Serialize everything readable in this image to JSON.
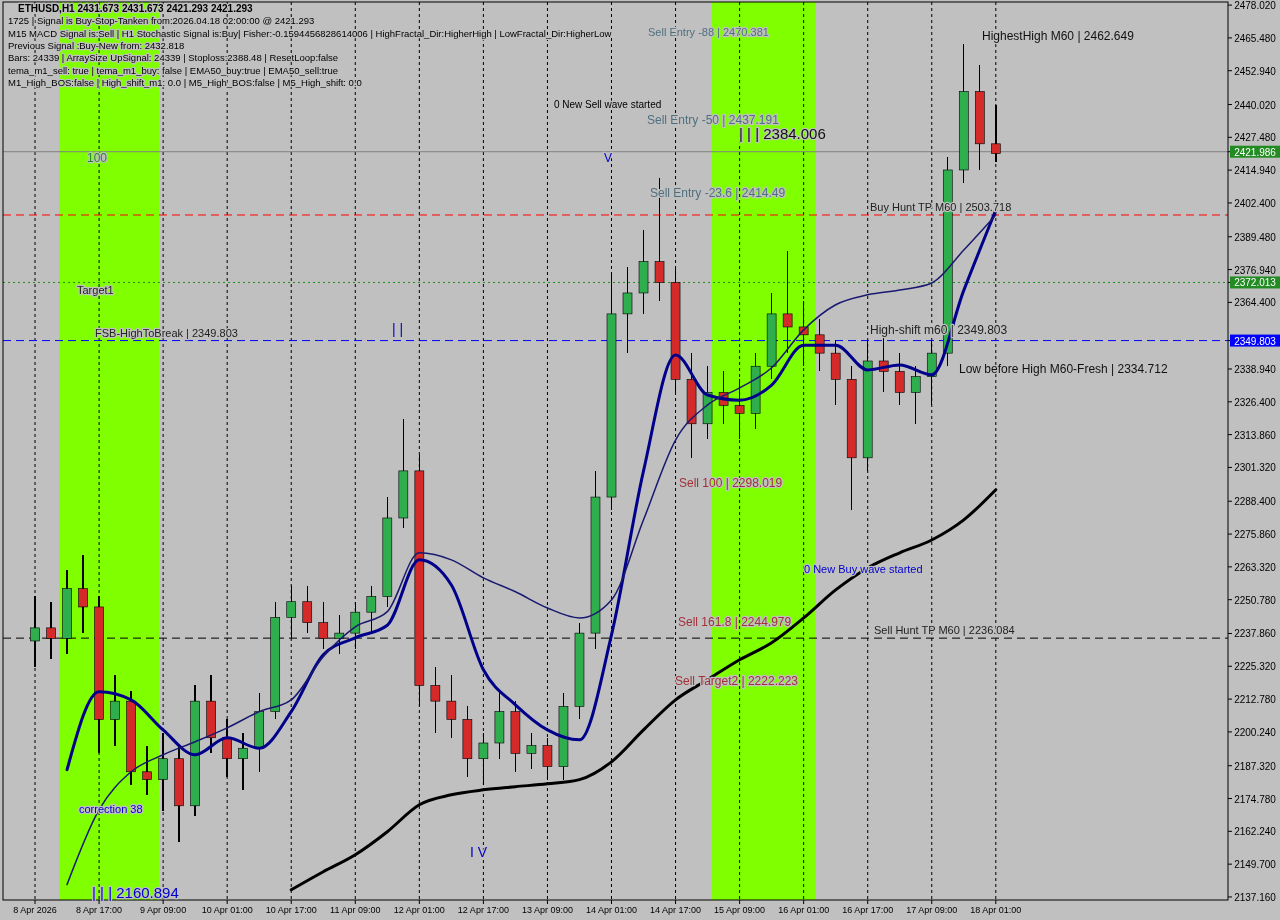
{
  "chart_data": {
    "type": "candlestick",
    "title": "ETHUSD,H1  2431.673 2431.673 2421.293 2421.293",
    "x": [
      "2026-04-08T01:00",
      "2026-04-08T05:00",
      "2026-04-08T09:00",
      "2026-04-08T13:00",
      "2026-04-08T17:00",
      "2026-04-08T21:00",
      "2026-04-09T01:00",
      "2026-04-09T05:00",
      "2026-04-09T09:00",
      "2026-04-09T13:00",
      "2026-04-09T17:00",
      "2026-04-09T21:00",
      "2026-04-10T01:00",
      "2026-04-10T05:00",
      "2026-04-10T09:00",
      "2026-04-10T13:00",
      "2026-04-10T17:00",
      "2026-04-10T21:00",
      "2026-04-11T01:00",
      "2026-04-11T05:00",
      "2026-04-11T09:00",
      "2026-04-11T13:00",
      "2026-04-11T17:00",
      "2026-04-11T21:00",
      "2026-04-12T01:00",
      "2026-04-12T05:00",
      "2026-04-12T09:00",
      "2026-04-12T13:00",
      "2026-04-12T17:00",
      "2026-04-12T21:00",
      "2026-04-13T01:00",
      "2026-04-13T05:00",
      "2026-04-13T09:00",
      "2026-04-13T13:00",
      "2026-04-13T17:00",
      "2026-04-13T21:00",
      "2026-04-14T01:00",
      "2026-04-14T05:00",
      "2026-04-14T09:00",
      "2026-04-14T13:00",
      "2026-04-14T17:00",
      "2026-04-14T21:00",
      "2026-04-15T01:00",
      "2026-04-15T05:00",
      "2026-04-15T09:00",
      "2026-04-15T13:00",
      "2026-04-15T17:00",
      "2026-04-15T21:00",
      "2026-04-16T01:00",
      "2026-04-16T05:00",
      "2026-04-16T09:00",
      "2026-04-16T13:00",
      "2026-04-16T17:00",
      "2026-04-16T21:00",
      "2026-04-17T01:00",
      "2026-04-17T05:00",
      "2026-04-17T09:00",
      "2026-04-17T13:00",
      "2026-04-17T17:00",
      "2026-04-17T21:00",
      "2026-04-18T01:00"
    ],
    "ohlc": [
      [
        2235,
        2252,
        2225,
        2240
      ],
      [
        2240,
        2250,
        2228,
        2236
      ],
      [
        2236,
        2262,
        2230,
        2255
      ],
      [
        2255,
        2268,
        2238,
        2248
      ],
      [
        2248,
        2252,
        2192,
        2205
      ],
      [
        2205,
        2222,
        2195,
        2212
      ],
      [
        2212,
        2216,
        2180,
        2185
      ],
      [
        2185,
        2195,
        2176,
        2182
      ],
      [
        2182,
        2200,
        2170,
        2190
      ],
      [
        2190,
        2195,
        2158,
        2172
      ],
      [
        2172,
        2218,
        2168,
        2212
      ],
      [
        2212,
        2222,
        2192,
        2198
      ],
      [
        2198,
        2205,
        2183,
        2190
      ],
      [
        2190,
        2200,
        2178,
        2194
      ],
      [
        2194,
        2215,
        2185,
        2208
      ],
      [
        2208,
        2250,
        2205,
        2244
      ],
      [
        2244,
        2256,
        2236,
        2250
      ],
      [
        2250,
        2256,
        2238,
        2242
      ],
      [
        2242,
        2250,
        2232,
        2236
      ],
      [
        2236,
        2245,
        2230,
        2238
      ],
      [
        2238,
        2250,
        2232,
        2246
      ],
      [
        2246,
        2256,
        2238,
        2252
      ],
      [
        2252,
        2290,
        2248,
        2282
      ],
      [
        2282,
        2320,
        2278,
        2300
      ],
      [
        2300,
        2306,
        2210,
        2218
      ],
      [
        2218,
        2225,
        2200,
        2212
      ],
      [
        2212,
        2222,
        2198,
        2205
      ],
      [
        2205,
        2210,
        2183,
        2190
      ],
      [
        2190,
        2200,
        2180,
        2196
      ],
      [
        2196,
        2215,
        2190,
        2208
      ],
      [
        2208,
        2212,
        2185,
        2192
      ],
      [
        2192,
        2200,
        2186,
        2195
      ],
      [
        2195,
        2198,
        2182,
        2187
      ],
      [
        2187,
        2215,
        2182,
        2210
      ],
      [
        2210,
        2242,
        2205,
        2238
      ],
      [
        2238,
        2300,
        2232,
        2290
      ],
      [
        2290,
        2375,
        2285,
        2360
      ],
      [
        2360,
        2378,
        2345,
        2368
      ],
      [
        2368,
        2392,
        2360,
        2380
      ],
      [
        2380,
        2412,
        2365,
        2372
      ],
      [
        2372,
        2378,
        2330,
        2335
      ],
      [
        2335,
        2345,
        2305,
        2318
      ],
      [
        2318,
        2340,
        2312,
        2330
      ],
      [
        2330,
        2338,
        2318,
        2325
      ],
      [
        2325,
        2335,
        2312,
        2322
      ],
      [
        2322,
        2345,
        2316,
        2340
      ],
      [
        2340,
        2368,
        2335,
        2360
      ],
      [
        2360,
        2384,
        2345,
        2355
      ],
      [
        2355,
        2365,
        2340,
        2352
      ],
      [
        2352,
        2358,
        2338,
        2345
      ],
      [
        2345,
        2350,
        2325,
        2335
      ],
      [
        2335,
        2340,
        2285,
        2305
      ],
      [
        2305,
        2350,
        2300,
        2342
      ],
      [
        2342,
        2355,
        2330,
        2338
      ],
      [
        2338,
        2345,
        2325,
        2330
      ],
      [
        2330,
        2340,
        2318,
        2336
      ],
      [
        2336,
        2350,
        2325,
        2345
      ],
      [
        2345,
        2420,
        2340,
        2415
      ],
      [
        2415,
        2463,
        2410,
        2445
      ],
      [
        2445,
        2455,
        2415,
        2425
      ],
      [
        2425,
        2440,
        2418,
        2421.293
      ]
    ],
    "series": [
      {
        "type": "line",
        "color": "#00008b",
        "x": [
          "2026-04-08T09:00",
          "2026-04-08T17:00",
          "2026-04-09T01:00",
          "2026-04-09T09:00",
          "2026-04-09T17:00",
          "2026-04-10T01:00",
          "2026-04-10T09:00",
          "2026-04-10T17:00",
          "2026-04-11T01:00",
          "2026-04-11T09:00",
          "2026-04-11T17:00",
          "2026-04-12T01:00",
          "2026-04-12T09:00",
          "2026-04-12T17:00",
          "2026-04-13T01:00",
          "2026-04-13T09:00",
          "2026-04-13T17:00",
          "2026-04-14T01:00",
          "2026-04-14T09:00",
          "2026-04-14T17:00",
          "2026-04-15T01:00",
          "2026-04-15T09:00",
          "2026-04-15T17:00",
          "2026-04-16T01:00",
          "2026-04-16T09:00",
          "2026-04-16T17:00",
          "2026-04-17T01:00",
          "2026-04-17T09:00",
          "2026-04-17T17:00",
          "2026-04-18T01:00"
        ],
        "values": [
          2185.8,
          2215.6,
          2212.5,
          2201,
          2191.5,
          2198,
          2194,
          2208,
          2229.7,
          2236.2,
          2241,
          2266,
          2256.4,
          2224,
          2210.6,
          2201,
          2197.2,
          2237.3,
          2300,
          2344.3,
          2329,
          2327,
          2332.8,
          2348,
          2348,
          2338.6,
          2340.5,
          2336.7,
          2369,
          2399.7
        ]
      },
      {
        "type": "line",
        "color": "#191970",
        "x": [
          "2026-04-08T09:00",
          "2026-04-08T17:00",
          "2026-04-09T01:00",
          "2026-04-09T09:00",
          "2026-04-09T17:00",
          "2026-04-10T01:00",
          "2026-04-10T09:00",
          "2026-04-10T17:00",
          "2026-04-11T01:00",
          "2026-04-11T09:00",
          "2026-04-11T17:00",
          "2026-04-12T01:00",
          "2026-04-12T09:00",
          "2026-04-12T17:00",
          "2026-04-13T01:00",
          "2026-04-13T09:00",
          "2026-04-13T17:00",
          "2026-04-14T01:00",
          "2026-04-14T09:00",
          "2026-04-14T17:00",
          "2026-04-15T01:00",
          "2026-04-15T09:00",
          "2026-04-15T17:00",
          "2026-04-16T01:00",
          "2026-04-16T09:00",
          "2026-04-16T17:00",
          "2026-04-17T01:00",
          "2026-04-17T09:00",
          "2026-04-17T17:00",
          "2026-04-18T01:00"
        ],
        "values": [
          2141.9,
          2170.5,
          2185,
          2191.5,
          2196.5,
          2201.8,
          2208,
          2212.5,
          2229,
          2240.4,
          2246.2,
          2268.7,
          2266,
          2259.1,
          2253.8,
          2247.6,
          2243.8,
          2250.7,
          2281.3,
          2311.8,
          2325.2,
          2331.7,
          2339.4,
          2353.9,
          2363.5,
          2367.3,
          2369.1,
          2371.8,
          2384.4,
          2397.8
        ]
      },
      {
        "type": "line",
        "color": "#000000",
        "x": [
          "2026-04-10T17:00",
          "2026-04-11T01:00",
          "2026-04-11T09:00",
          "2026-04-11T17:00",
          "2026-04-12T01:00",
          "2026-04-12T09:00",
          "2026-04-12T17:00",
          "2026-04-13T01:00",
          "2026-04-13T09:00",
          "2026-04-13T17:00",
          "2026-04-14T01:00",
          "2026-04-14T09:00",
          "2026-04-14T17:00",
          "2026-04-15T01:00",
          "2026-04-15T09:00",
          "2026-04-15T17:00",
          "2026-04-16T01:00",
          "2026-04-16T09:00",
          "2026-04-16T17:00",
          "2026-04-17T01:00",
          "2026-04-17T09:00",
          "2026-04-17T17:00",
          "2026-04-18T01:00"
        ],
        "values": [
          2139.9,
          2146.8,
          2153.3,
          2162.1,
          2172.4,
          2176.2,
          2178.1,
          2179.3,
          2180.4,
          2182,
          2188.8,
          2201,
          2212.5,
          2220.2,
          2227.8,
          2234.3,
          2243.8,
          2254.5,
          2262.9,
          2268.7,
          2273.6,
          2281.3,
          2292.8
        ]
      }
    ],
    "xlim": [
      "2026-04-07T17:00",
      "2026-04-20T11:00"
    ],
    "xticks": [
      {
        "value": "2026-04-08T01:00",
        "label": "8 Apr 2026"
      },
      {
        "value": "2026-04-08T17:00",
        "label": "8 Apr 17:00"
      },
      {
        "value": "2026-04-09T09:00",
        "label": "9 Apr 09:00"
      },
      {
        "value": "2026-04-10T01:00",
        "label": "10 Apr 01:00"
      },
      {
        "value": "2026-04-10T17:00",
        "label": "10 Apr 17:00"
      },
      {
        "value": "2026-04-11T09:00",
        "label": "11 Apr 09:00"
      },
      {
        "value": "2026-04-12T01:00",
        "label": "12 Apr 01:00"
      },
      {
        "value": "2026-04-12T17:00",
        "label": "12 Apr 17:00"
      },
      {
        "value": "2026-04-13T09:00",
        "label": "13 Apr 09:00"
      },
      {
        "value": "2026-04-14T01:00",
        "label": "14 Apr 01:00"
      },
      {
        "value": "2026-04-14T17:00",
        "label": "14 Apr 17:00"
      },
      {
        "value": "2026-04-15T09:00",
        "label": "15 Apr 09:00"
      },
      {
        "value": "2026-04-16T01:00",
        "label": "16 Apr 01:00"
      },
      {
        "value": "2026-04-16T17:00",
        "label": "16 Apr 17:00"
      },
      {
        "value": "2026-04-17T09:00",
        "label": "17 Apr 09:00"
      },
      {
        "value": "2026-04-18T01:00",
        "label": "18 Apr 01:00"
      }
    ],
    "ylim": [
      2136.0,
      2479.2
    ],
    "yticks": [
      {
        "value": 2478.02,
        "label": "2478.020"
      },
      {
        "value": 2465.48,
        "label": "2465.480"
      },
      {
        "value": 2452.94,
        "label": "2452.940"
      },
      {
        "value": 2440.02,
        "label": "2440.020"
      },
      {
        "value": 2427.48,
        "label": "2427.480"
      },
      {
        "value": 2421.986,
        "label": "2421.986"
      },
      {
        "value": 2414.94,
        "label": "2414.940"
      },
      {
        "value": 2402.4,
        "label": "2402.400"
      },
      {
        "value": 2389.48,
        "label": "2389.480"
      },
      {
        "value": 2376.94,
        "label": "2376.940"
      },
      {
        "value": 2372.013,
        "label": "2372.013"
      },
      {
        "value": 2364.4,
        "label": "2364.400"
      },
      {
        "value": 2349.803,
        "label": "2349.803"
      },
      {
        "value": 2338.94,
        "label": "2338.940"
      },
      {
        "value": 2326.4,
        "label": "2326.400"
      },
      {
        "value": 2313.86,
        "label": "2313.860"
      },
      {
        "value": 2301.32,
        "label": "2301.320"
      },
      {
        "value": 2288.4,
        "label": "2288.400"
      },
      {
        "value": 2275.86,
        "label": "2275.860"
      },
      {
        "value": 2263.32,
        "label": "2263.320"
      },
      {
        "value": 2250.78,
        "label": "2250.780"
      },
      {
        "value": 2237.86,
        "label": "2237.860"
      },
      {
        "value": 2225.32,
        "label": "2225.320"
      },
      {
        "value": 2212.78,
        "label": "2212.780"
      },
      {
        "value": 2200.24,
        "label": "2200.240"
      },
      {
        "value": 2187.32,
        "label": "2187.320"
      },
      {
        "value": 2174.78,
        "label": "2174.780"
      },
      {
        "value": 2162.24,
        "label": "2162.240"
      },
      {
        "value": 2149.7,
        "label": "2149.700"
      },
      {
        "value": 2137.16,
        "label": "2137.160"
      }
    ],
    "grid": "x",
    "bands": [
      {
        "axis": "x",
        "from": "2026-04-08T07:00",
        "to": "2026-04-09T08:00",
        "color": "#7fff00"
      },
      {
        "axis": "x",
        "from": "2026-04-15T02:00",
        "to": "2026-04-16T04:00",
        "color": "#7fff00"
      }
    ],
    "ref_lines": [
      {
        "axis": "y",
        "value": 2421.986,
        "color": "#808080",
        "line_style": "solid"
      },
      {
        "axis": "y",
        "value": 2372.013,
        "label": "Target1",
        "color": "#228b22",
        "line_style": "dotted"
      },
      {
        "axis": "y",
        "value": 2349.803,
        "label": "FSB-HighToBreak | 2349.803",
        "color": "#0000ff",
        "line_style": "dashed"
      },
      {
        "axis": "y",
        "value": 2397.8,
        "label": "Buy Hunt TP M60 | 2503.718",
        "color": "#ff0000",
        "line_style": "dashed"
      },
      {
        "axis": "y",
        "value": 2236.084,
        "label": "Sell Hunt TP M60 | 2236.084",
        "color": "#000000",
        "line_style": "dashed"
      }
    ],
    "annotations": [
      "1725 | Signal is Buy-Stop-Tanken from:2026.04.18 02:00:00 @ 2421.293",
      "M15 MACD Signal is:Sell | H1 Stochastic Signal is:Buy| Fisher:-0.1594456828614006 | HighFractal_Dir:HigherHigh | LowFractal_Dir:HigherLow",
      "Previous Signal :Buy-New from: 2432.818",
      "Bars: 24339 | ArraySize UpSignal: 24339 | Stoploss:2388.48 | ResetLoop:false",
      "tema_m1_sell: true | tema_m1_buy: false | EMA50_buy:true | EMA50_sell:true",
      "M1_High_BOS:false | High_shift_m1: 0.0 | M5_High_BOS:false | M5_High_shift: 0.0",
      "Sell Entry -88 | 2470.381",
      "0 New Sell wave started",
      "Sell Entry -50 | 2437.191",
      "| | | 2384.006",
      "Sell Entry -23.6 | 2414.49",
      "HighestHigh    M60 | 2462.649",
      "High-shift m60 | 2349.803",
      "Low before High    M60-Fresh | 2334.712",
      "Sell 100 | 2298.019",
      "0 New Buy wave started",
      "Sell 161.8 | 2244.979",
      "Sell Target2 | 2222.223",
      "100",
      "correction 38",
      "| | | 2160.894",
      "I V",
      "| |",
      "V"
    ]
  }
}
